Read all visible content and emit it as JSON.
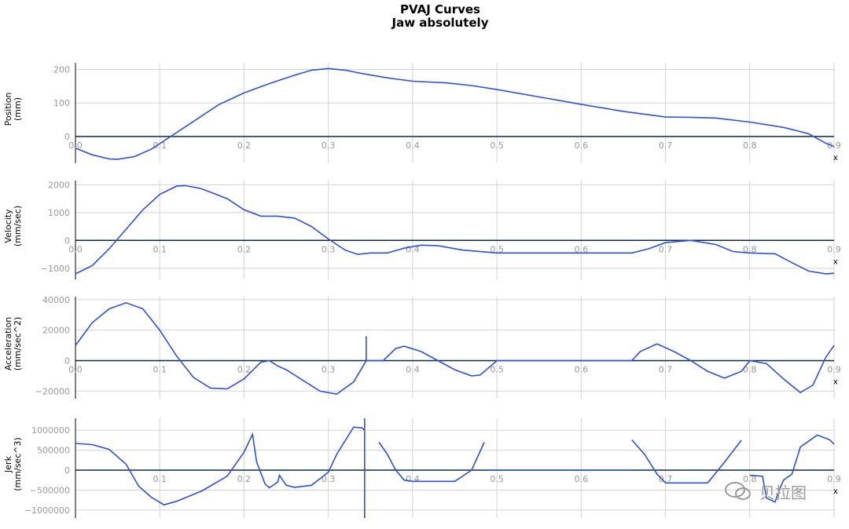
{
  "title": {
    "line1": "PVAJ Curves",
    "line2": "Jaw absolutely"
  },
  "watermark": {
    "text": "贝拉图",
    "icon": "wechat-icon"
  },
  "colors": {
    "curve": "#2d50d8",
    "zero_line": "#0b2a4a",
    "grid": "#d3d3d3",
    "tick": "#999999"
  },
  "chart_data": [
    {
      "type": "line",
      "ylabel": [
        "Position",
        "(mm)"
      ],
      "xlabel": "x",
      "xlim": [
        0,
        0.9
      ],
      "xticks": [
        "0.0",
        "0.1",
        "0.2",
        "0.3",
        "0.4",
        "0.5",
        "0.6",
        "0.7",
        "0.8",
        "0.9"
      ],
      "ylim": [
        -80,
        220
      ],
      "yticks": [
        0,
        100,
        200
      ],
      "ytick_labels": [
        "0",
        "100",
        "200"
      ],
      "grid": true,
      "segments": [
        [
          [
            0,
            -35
          ],
          [
            0.02,
            -55
          ],
          [
            0.04,
            -67
          ],
          [
            0.05,
            -68
          ],
          [
            0.07,
            -60
          ],
          [
            0.09,
            -38
          ],
          [
            0.11,
            -5
          ],
          [
            0.14,
            45
          ],
          [
            0.17,
            95
          ],
          [
            0.2,
            130
          ],
          [
            0.23,
            158
          ],
          [
            0.26,
            183
          ],
          [
            0.28,
            198
          ],
          [
            0.3,
            203
          ],
          [
            0.32,
            198
          ],
          [
            0.34,
            188
          ],
          [
            0.37,
            175
          ],
          [
            0.4,
            165
          ],
          [
            0.44,
            160
          ],
          [
            0.47,
            152
          ],
          [
            0.5,
            140
          ],
          [
            0.55,
            118
          ],
          [
            0.6,
            96
          ],
          [
            0.65,
            75
          ],
          [
            0.7,
            58
          ],
          [
            0.73,
            57
          ],
          [
            0.76,
            55
          ],
          [
            0.8,
            43
          ],
          [
            0.84,
            27
          ],
          [
            0.87,
            8
          ],
          [
            0.89,
            -20
          ],
          [
            0.9,
            -30
          ]
        ]
      ]
    },
    {
      "type": "line",
      "ylabel": [
        "Velocity",
        "(mm/sec)"
      ],
      "xlabel": "x",
      "xlim": [
        0,
        0.9
      ],
      "xticks": [
        "0.0",
        "0.1",
        "0.2",
        "0.3",
        "0.4",
        "0.5",
        "0.6",
        "0.7",
        "0.8",
        "0.9"
      ],
      "ylim": [
        -1400,
        2150
      ],
      "yticks": [
        -1000,
        0,
        1000,
        2000
      ],
      "ytick_labels": [
        "−1000",
        "0",
        "1000",
        "2000"
      ],
      "grid": true,
      "segments": [
        [
          [
            0,
            -1200
          ],
          [
            0.02,
            -900
          ],
          [
            0.04,
            -300
          ],
          [
            0.06,
            400
          ],
          [
            0.08,
            1100
          ],
          [
            0.1,
            1650
          ],
          [
            0.12,
            1950
          ],
          [
            0.13,
            1970
          ],
          [
            0.15,
            1850
          ],
          [
            0.18,
            1500
          ],
          [
            0.2,
            1100
          ],
          [
            0.22,
            870
          ],
          [
            0.24,
            870
          ],
          [
            0.26,
            800
          ],
          [
            0.28,
            500
          ],
          [
            0.3,
            50
          ],
          [
            0.32,
            -350
          ],
          [
            0.335,
            -500
          ],
          [
            0.35,
            -450
          ],
          [
            0.37,
            -450
          ],
          [
            0.39,
            -280
          ],
          [
            0.41,
            -170
          ],
          [
            0.43,
            -190
          ],
          [
            0.46,
            -350
          ],
          [
            0.5,
            -450
          ],
          [
            0.55,
            -450
          ],
          [
            0.6,
            -450
          ],
          [
            0.66,
            -450
          ],
          [
            0.68,
            -300
          ],
          [
            0.7,
            -80
          ],
          [
            0.73,
            0
          ],
          [
            0.76,
            -150
          ],
          [
            0.78,
            -400
          ],
          [
            0.8,
            -450
          ],
          [
            0.83,
            -480
          ],
          [
            0.85,
            -800
          ],
          [
            0.87,
            -1100
          ],
          [
            0.89,
            -1200
          ],
          [
            0.9,
            -1180
          ]
        ]
      ]
    },
    {
      "type": "line",
      "ylabel": [
        "Acceleration",
        "(mm/sec^2)"
      ],
      "xlabel": "x",
      "xlim": [
        0,
        0.9
      ],
      "xticks": [
        "0.0",
        "0.1",
        "0.2",
        "0.3",
        "0.4",
        "0.5",
        "0.6",
        "0.7",
        "0.8",
        "0.9"
      ],
      "ylim": [
        -25000,
        42000
      ],
      "yticks": [
        -20000,
        0,
        20000,
        40000
      ],
      "ytick_labels": [
        "−20000",
        "0",
        "20000",
        "40000"
      ],
      "grid": true,
      "segments": [
        [
          [
            0,
            10000
          ],
          [
            0.02,
            25000
          ],
          [
            0.04,
            34000
          ],
          [
            0.06,
            38000
          ],
          [
            0.08,
            34000
          ],
          [
            0.1,
            20000
          ],
          [
            0.12,
            3000
          ],
          [
            0.14,
            -11000
          ],
          [
            0.16,
            -18000
          ],
          [
            0.18,
            -18500
          ],
          [
            0.2,
            -12000
          ],
          [
            0.22,
            -1000
          ],
          [
            0.23,
            0
          ],
          [
            0.24,
            -3500
          ],
          [
            0.25,
            -6000
          ],
          [
            0.27,
            -13000
          ],
          [
            0.29,
            -20000
          ],
          [
            0.31,
            -22000
          ],
          [
            0.33,
            -14000
          ],
          [
            0.345,
            0
          ],
          [
            0.345,
            16000
          ],
          [
            0.345,
            0
          ],
          [
            0.365,
            0
          ],
          [
            0.38,
            8000
          ],
          [
            0.39,
            9500
          ],
          [
            0.41,
            6000
          ],
          [
            0.43,
            0
          ],
          [
            0.45,
            -6000
          ],
          [
            0.47,
            -10000
          ],
          [
            0.48,
            -9500
          ],
          [
            0.5,
            0
          ],
          [
            0.55,
            0
          ],
          [
            0.6,
            0
          ],
          [
            0.66,
            0
          ],
          [
            0.67,
            6000
          ],
          [
            0.69,
            11000
          ],
          [
            0.71,
            6000
          ],
          [
            0.73,
            0
          ],
          [
            0.75,
            -7000
          ],
          [
            0.77,
            -11500
          ],
          [
            0.79,
            -7000
          ],
          [
            0.8,
            0
          ],
          [
            0.82,
            -2000
          ],
          [
            0.84,
            -12000
          ],
          [
            0.86,
            -21000
          ],
          [
            0.875,
            -16000
          ],
          [
            0.89,
            2000
          ],
          [
            0.9,
            10000
          ]
        ]
      ]
    },
    {
      "type": "line",
      "ylabel": [
        "Jerk",
        "(mm/sec^3)"
      ],
      "xlabel": "x",
      "xlim": [
        0,
        0.9
      ],
      "xticks": [
        "0.1",
        "0.2",
        "0.3",
        "0.4",
        "0.5",
        "0.6",
        "0.7",
        "0.8",
        "0.9"
      ],
      "ylim": [
        -1200000,
        1300000
      ],
      "yticks": [
        -1000000,
        -500000,
        0,
        500000,
        1000000
      ],
      "ytick_labels": [
        "−1000000",
        "−500000",
        "0",
        "500000",
        "1000000"
      ],
      "grid": true,
      "segments": [
        [
          [
            0,
            670000
          ],
          [
            0.02,
            640000
          ],
          [
            0.04,
            520000
          ],
          [
            0.06,
            150000
          ],
          [
            0.075,
            -400000
          ],
          [
            0.09,
            -680000
          ],
          [
            0.105,
            -870000
          ],
          [
            0.12,
            -780000
          ],
          [
            0.15,
            -520000
          ],
          [
            0.18,
            -150000
          ],
          [
            0.2,
            450000
          ],
          [
            0.21,
            900000
          ],
          [
            0.215,
            200000
          ],
          [
            0.225,
            -350000
          ],
          [
            0.23,
            -440000
          ],
          [
            0.24,
            -300000
          ],
          [
            0.242,
            -130000
          ],
          [
            0.25,
            -380000
          ],
          [
            0.26,
            -430000
          ],
          [
            0.28,
            -380000
          ],
          [
            0.3,
            -50000
          ],
          [
            0.31,
            400000
          ],
          [
            0.33,
            1080000
          ],
          [
            0.34,
            1060000
          ],
          [
            0.343,
            1000000
          ]
        ],
        [
          [
            0.343,
            1300000
          ],
          [
            0.343,
            -1200000
          ]
        ],
        [
          [
            0.36,
            700000
          ],
          [
            0.37,
            400000
          ],
          [
            0.38,
            0
          ],
          [
            0.39,
            -250000
          ],
          [
            0.4,
            -280000
          ],
          [
            0.45,
            -280000
          ],
          [
            0.47,
            0
          ],
          [
            0.485,
            700000
          ]
        ],
        [
          [
            0.49,
            0
          ],
          [
            0.66,
            0
          ]
        ],
        [
          [
            0.66,
            760000
          ],
          [
            0.675,
            400000
          ],
          [
            0.69,
            -100000
          ],
          [
            0.7,
            -320000
          ],
          [
            0.75,
            -320000
          ],
          [
            0.77,
            200000
          ],
          [
            0.79,
            750000
          ]
        ],
        [
          [
            0.8,
            -130000
          ],
          [
            0.815,
            -150000
          ],
          [
            0.82,
            -700000
          ],
          [
            0.83,
            -800000
          ],
          [
            0.835,
            -500000
          ],
          [
            0.84,
            -250000
          ],
          [
            0.85,
            -100000
          ],
          [
            0.86,
            580000
          ],
          [
            0.88,
            880000
          ],
          [
            0.895,
            760000
          ],
          [
            0.9,
            650000
          ]
        ]
      ]
    }
  ]
}
